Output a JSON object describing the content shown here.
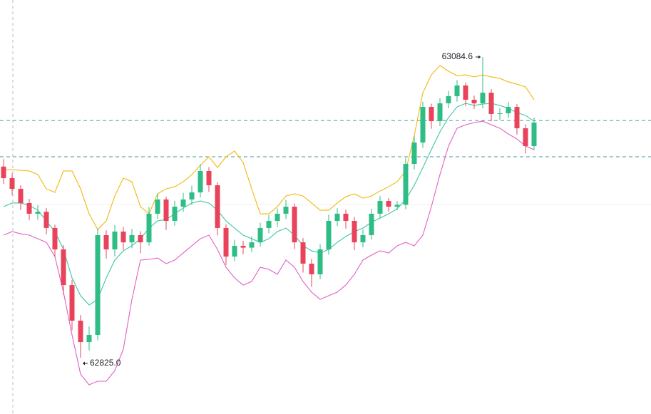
{
  "chart_data": {
    "type": "candlestick",
    "up_color": "#2ebd85",
    "down_color": "#e8435a",
    "open": [
      62990.0,
      62980.0,
      62970.8,
      62958.5,
      62949.3,
      62951.0,
      62937.0,
      62918.5,
      62887.7,
      62857.0,
      62838.5,
      62844.7,
      62930.8,
      62918.5,
      62933.9,
      62924.6,
      62930.8,
      62924.6,
      62949.3,
      62961.6,
      62943.1,
      62955.4,
      62961.6,
      62967.7,
      62986.2,
      62973.9,
      62937.0,
      62912.3,
      62921.6,
      62920.0,
      62924.6,
      62937.0,
      62943.1,
      62949.3,
      62955.4,
      62924.6,
      62906.2,
      62897.0,
      62918.5,
      62943.1,
      62949.3,
      62943.1,
      62924.6,
      62930.8,
      62949.3,
      62960.3,
      62955.4,
      62957.0,
      62992.3,
      63010.8,
      63041.5,
      63029.2,
      63044.6,
      63050.8,
      63060.0,
      63047.7,
      63044.6,
      63053.8,
      63035.4,
      63036.0,
      63041.5,
      63023.1,
      63007.7
    ],
    "high": [
      62996.5,
      62984.1,
      62974.0,
      62962.2,
      62956.7,
      62954.3,
      62939.8,
      62922.1,
      62892.3,
      62861.9,
      62852.0,
      62936.4,
      62935.0,
      62939.6,
      62937.8,
      62936.1,
      62934.2,
      62955.0,
      62966.8,
      62964.0,
      62960.5,
      62967.3,
      62973.5,
      62992.0,
      62989.5,
      62976.4,
      62940.2,
      62926.8,
      62925.9,
      62929.7,
      62941.5,
      62948.2,
      62953.9,
      62961.2,
      62958.0,
      62928.3,
      62910.4,
      62923.0,
      62948.6,
      62954.0,
      62952.8,
      62946.5,
      62935.7,
      62953.6,
      62964.8,
      62962.7,
      62960.1,
      62997.5,
      63016.4,
      63046.0,
      63044.3,
      63049.1,
      63055.2,
      63064.7,
      63062.5,
      63051.3,
      63084.6,
      63056.9,
      63040.4,
      63045.7,
      63043.9,
      63026.5,
      63032.2
    ],
    "low": [
      62975.2,
      62965.3,
      62952.6,
      62943.8,
      62944.0,
      62931.5,
      62912.0,
      62879.4,
      62848.6,
      62825.0,
      62831.2,
      62840.1,
      62910.7,
      62912.4,
      62918.0,
      62919.5,
      62915.3,
      62921.7,
      62944.9,
      62935.2,
      62939.0,
      62950.8,
      62957.0,
      62963.4,
      62968.1,
      62930.6,
      62905.0,
      62908.4,
      62914.3,
      62916.2,
      62921.0,
      62932.5,
      62938.0,
      62944.7,
      62918.8,
      62898.5,
      62886.1,
      62892.8,
      62914.0,
      62938.7,
      62936.4,
      62917.9,
      62920.3,
      62927.0,
      62945.1,
      62951.0,
      62952.3,
      62953.2,
      62987.6,
      63006.2,
      63022.7,
      63025.0,
      63040.3,
      63046.1,
      63042.0,
      63039.8,
      63040.2,
      63029.1,
      63030.5,
      63031.8,
      63017.6,
      63001.3,
      63004.0
    ],
    "close": [
      62980.0,
      62970.8,
      62958.5,
      62949.3,
      62951.0,
      62937.0,
      62918.5,
      62887.7,
      62857.0,
      62838.5,
      62844.7,
      62930.8,
      62918.5,
      62933.9,
      62924.6,
      62930.8,
      62924.6,
      62949.3,
      62961.6,
      62943.1,
      62955.4,
      62961.6,
      62967.7,
      62986.2,
      62973.9,
      62937.0,
      62912.3,
      62921.6,
      62920.0,
      62924.6,
      62937.0,
      62943.1,
      62949.3,
      62955.4,
      62924.6,
      62906.2,
      62897.0,
      62918.5,
      62943.1,
      62949.3,
      62943.1,
      62924.6,
      62930.8,
      62949.3,
      62960.3,
      62955.4,
      62957.0,
      62992.3,
      63010.8,
      63041.5,
      63029.2,
      63044.6,
      63050.8,
      63060.0,
      63047.7,
      63044.6,
      63053.8,
      63035.4,
      63036.0,
      63041.5,
      63023.1,
      63007.7,
      63028.0
    ],
    "bands": [
      {
        "color": "#f0b90b",
        "values": [
          62987.4,
          62987.4,
          62986.8,
          62986.2,
          62983.1,
          62970.8,
          62967.7,
          62986.2,
          62986.2,
          62970.8,
          62949.2,
          62935.7,
          62943.1,
          62964.6,
          62980.0,
          62976.9,
          62955.4,
          62949.2,
          62966.5,
          62970.8,
          62972.6,
          62976.9,
          62983.1,
          62991.1,
          62998.5,
          62989.2,
          62998.5,
          63003.4,
          62993.5,
          62970.8,
          62949.2,
          62949.2,
          62955.4,
          62964.6,
          62966.5,
          62964.6,
          62958.5,
          62952.3,
          62952.3,
          62958.5,
          62964.0,
          62966.5,
          62962.8,
          62964.6,
          62968.9,
          62972.6,
          62976.9,
          62986.2,
          63016.9,
          63053.8,
          63069.2,
          63077.2,
          63072.3,
          63068.6,
          63069.2,
          63067.4,
          63069.2,
          63067.4,
          63066.1,
          63063.1,
          63061.2,
          63058.8,
          63047.7
        ]
      },
      {
        "color": "#3cc8a4",
        "values": [
          62955.4,
          62958.5,
          62958.5,
          62956.6,
          62952.3,
          62943.1,
          62933.9,
          62918.5,
          62893.9,
          62878.5,
          62870.5,
          62875.4,
          62893.9,
          62909.3,
          62917.3,
          62921.6,
          62927.7,
          62936.9,
          62943.1,
          62944.3,
          62949.2,
          62954.2,
          62958.5,
          62960.3,
          62958.5,
          62952.3,
          62943.1,
          62936.9,
          62930.8,
          62927.7,
          62924.6,
          62927.7,
          62933.9,
          62936.9,
          62930.8,
          62921.6,
          62917.3,
          62915.4,
          62918.5,
          62924.6,
          62929.6,
          62933.9,
          62936.9,
          62941.9,
          62945.6,
          62949.2,
          62953.6,
          62961.5,
          62973.9,
          62989.2,
          63004.6,
          63020.0,
          63032.3,
          63041.5,
          63044.6,
          63042.8,
          63044.0,
          63044.6,
          63042.8,
          63040.3,
          63036.6,
          63034.1,
          63029.2
        ]
      },
      {
        "color": "#e060c4",
        "values": [
          62930.8,
          62933.9,
          62932.0,
          62930.8,
          62927.7,
          62924.6,
          62912.3,
          62881.6,
          62844.7,
          62810.8,
          62801.6,
          62804.7,
          62804.7,
          62813.9,
          62832.4,
          62875.4,
          62909.3,
          62909.9,
          62911.1,
          62906.2,
          62909.3,
          62915.4,
          62921.6,
          62927.7,
          62930.8,
          62918.5,
          62903.1,
          62893.9,
          62887.7,
          62890.8,
          62903.1,
          62901.3,
          62897.0,
          62909.3,
          62903.1,
          62890.8,
          62881.6,
          62875.4,
          62878.5,
          62881.6,
          62887.7,
          62897.0,
          62909.3,
          62913.6,
          62917.3,
          62915.4,
          62921.6,
          62924.6,
          62921.6,
          62930.8,
          62955.4,
          62983.1,
          63007.7,
          63023.1,
          63026.1,
          63028.0,
          63029.2,
          63026.1,
          63023.1,
          63018.1,
          63013.8,
          63007.7,
          63004.6
        ]
      }
    ],
    "price_lines": [
      63029.8,
      62998.5
    ],
    "price_line_color": "#4a9a98",
    "high_label": "63084.6",
    "low_label": "62825.0"
  }
}
